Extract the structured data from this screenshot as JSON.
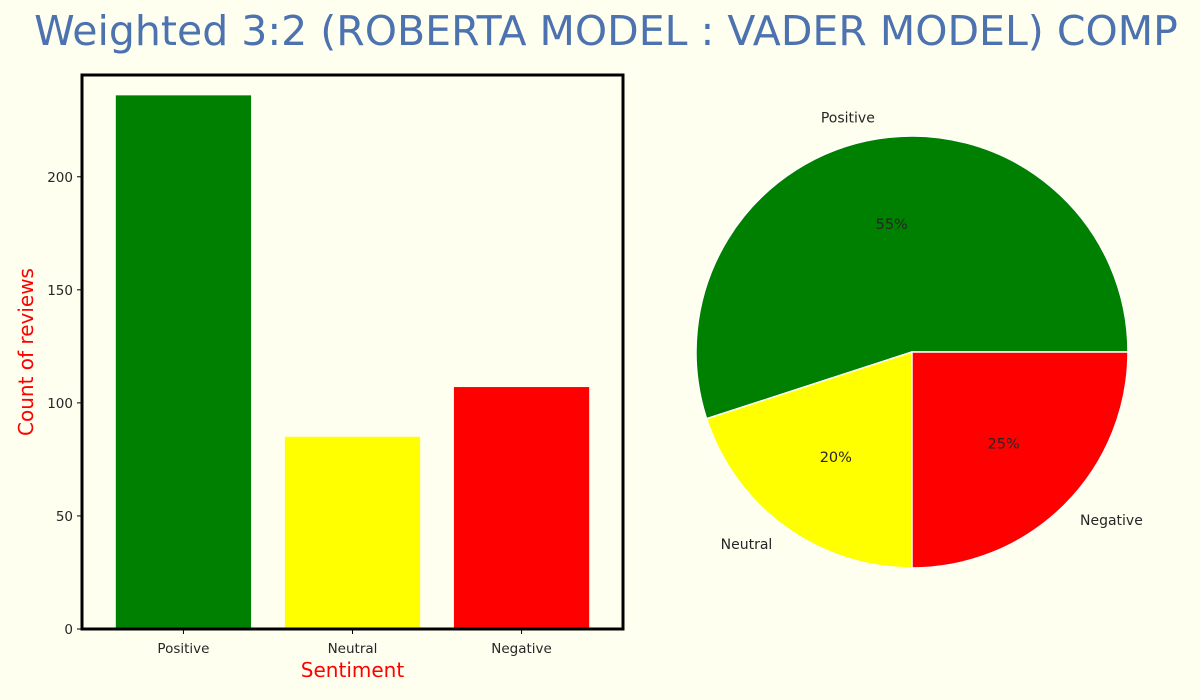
{
  "title": "Weighted 3:2 (ROBERTA MODEL : VADER MODEL) COMP",
  "colors": {
    "background": "#fffff0",
    "title": "#4c72b0",
    "axis_label": "#ff0000",
    "positive": "#008000",
    "neutral": "#ffff00",
    "negative": "#ff0000"
  },
  "chart_data": [
    {
      "type": "bar",
      "categories": [
        "Positive",
        "Neutral",
        "Negative"
      ],
      "values": [
        236,
        85,
        107
      ],
      "colors": [
        "#008000",
        "#ffff00",
        "#ff0000"
      ],
      "xlabel": "Sentiment",
      "ylabel": "Count of reviews",
      "ylim": [
        0,
        245
      ],
      "yticks": [
        0,
        50,
        100,
        150,
        200
      ],
      "grid": false
    },
    {
      "type": "pie",
      "labels": [
        "Positive",
        "Neutral",
        "Negative"
      ],
      "values": [
        55,
        20,
        25
      ],
      "pct_labels": [
        "55%",
        "20%",
        "25%"
      ],
      "colors": [
        "#008000",
        "#ffff00",
        "#ff0000"
      ],
      "start_angle_deg": 0,
      "direction": "counterclockwise"
    }
  ]
}
